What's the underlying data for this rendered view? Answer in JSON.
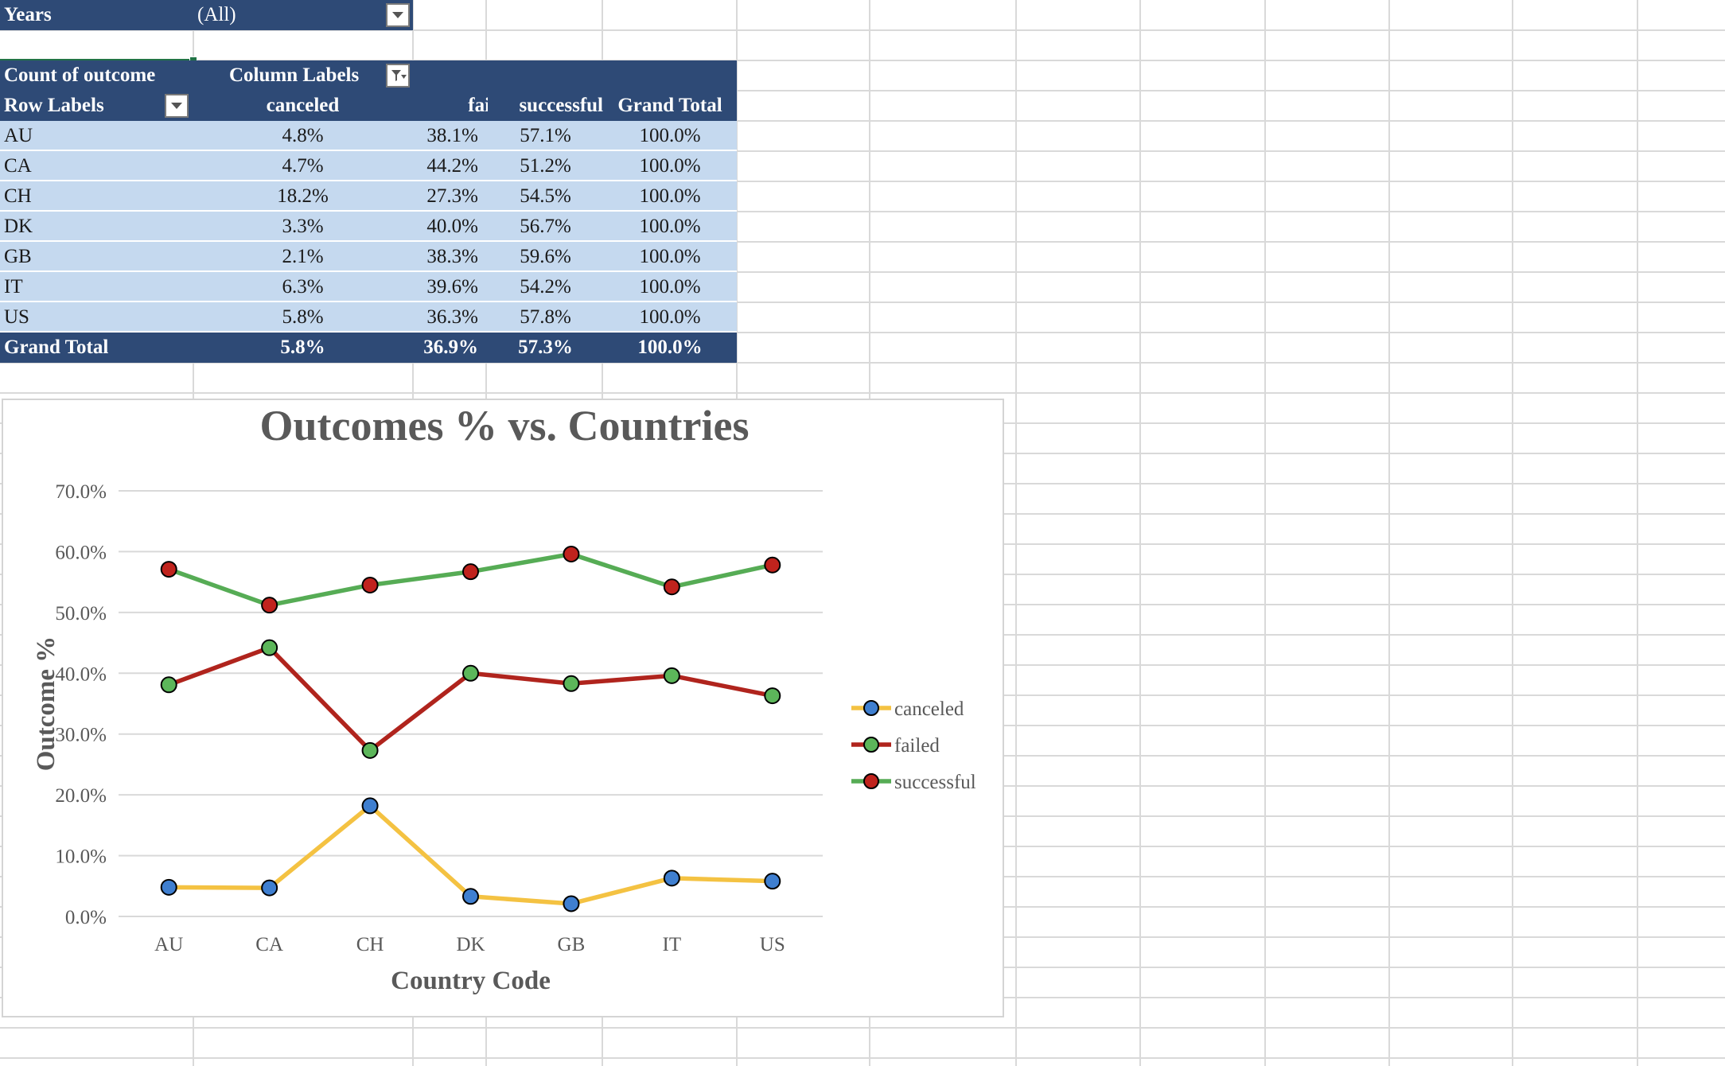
{
  "filter": {
    "label": "Years",
    "value": "(All)"
  },
  "pivot": {
    "value_header": "Count of outcome",
    "col_labels_header": "Column Labels",
    "row_labels_header": "Row Labels",
    "columns": [
      "canceled",
      "failed",
      "successful",
      "Grand Total"
    ],
    "rows": [
      {
        "label": "AU",
        "values": [
          "4.8%",
          "38.1%",
          "57.1%",
          "100.0%"
        ]
      },
      {
        "label": "CA",
        "values": [
          "4.7%",
          "44.2%",
          "51.2%",
          "100.0%"
        ]
      },
      {
        "label": "CH",
        "values": [
          "18.2%",
          "27.3%",
          "54.5%",
          "100.0%"
        ]
      },
      {
        "label": "DK",
        "values": [
          "3.3%",
          "40.0%",
          "56.7%",
          "100.0%"
        ]
      },
      {
        "label": "GB",
        "values": [
          "2.1%",
          "38.3%",
          "59.6%",
          "100.0%"
        ]
      },
      {
        "label": "IT",
        "values": [
          "6.3%",
          "39.6%",
          "54.2%",
          "100.0%"
        ]
      },
      {
        "label": "US",
        "values": [
          "5.8%",
          "36.3%",
          "57.8%",
          "100.0%"
        ]
      }
    ],
    "grand_total": {
      "label": "Grand Total",
      "values": [
        "5.8%",
        "36.9%",
        "57.3%",
        "100.0%"
      ]
    }
  },
  "chart_data": {
    "type": "line",
    "title": "Outcomes % vs. Countries",
    "xlabel": "Country Code",
    "ylabel": "Outcome %",
    "categories": [
      "AU",
      "CA",
      "CH",
      "DK",
      "GB",
      "IT",
      "US"
    ],
    "ylim": [
      0,
      70
    ],
    "ytick_labels": [
      "0.0%",
      "10.0%",
      "20.0%",
      "30.0%",
      "40.0%",
      "50.0%",
      "60.0%",
      "70.0%"
    ],
    "grid": true,
    "legend_position": "right",
    "series": [
      {
        "name": "canceled",
        "values": [
          4.8,
          4.7,
          18.2,
          3.3,
          2.1,
          6.3,
          5.8
        ],
        "line_color": "#f4c242",
        "marker_color": "#3f7fd0"
      },
      {
        "name": "failed",
        "values": [
          38.1,
          44.2,
          27.3,
          40.0,
          38.3,
          39.6,
          36.3
        ],
        "line_color": "#b0241d",
        "marker_color": "#5cb65a"
      },
      {
        "name": "successful",
        "values": [
          57.1,
          51.2,
          54.5,
          56.7,
          59.6,
          54.2,
          57.8
        ],
        "line_color": "#56ac55",
        "marker_color": "#c0231d"
      }
    ]
  }
}
